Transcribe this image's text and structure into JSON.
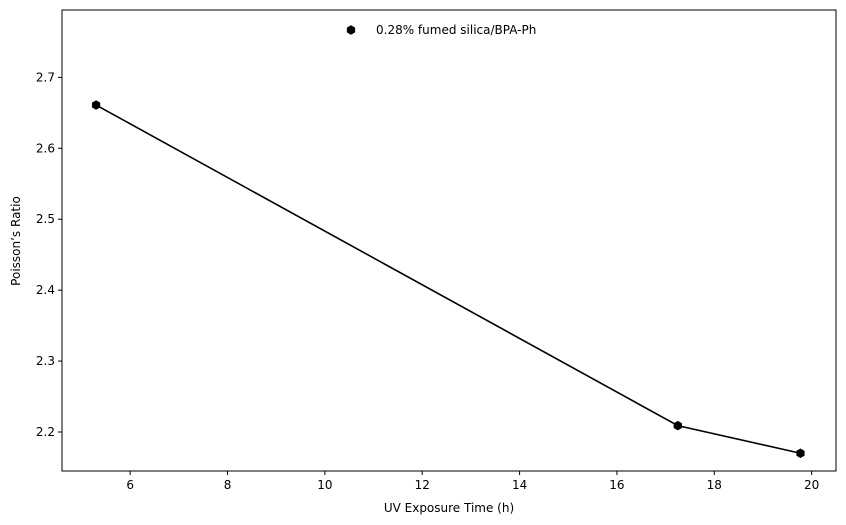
{
  "chart_data": {
    "type": "line",
    "title": "",
    "xlabel": "UV Exposure Time (h)",
    "ylabel": "Poisson’s Ratio",
    "xlim": [
      4.6,
      20.5
    ],
    "ylim": [
      2.145,
      2.795
    ],
    "xticks": [
      6,
      8,
      10,
      12,
      14,
      16,
      18,
      20
    ],
    "yticks": [
      2.2,
      2.3,
      2.4,
      2.5,
      2.6,
      2.7
    ],
    "grid": false,
    "legend": {
      "position": "top-center"
    },
    "series": [
      {
        "name": "0.28% fumed silica/BPA-Ph",
        "color": "#000000",
        "marker": "hexagon",
        "points": [
          {
            "x": 5.3,
            "y": 2.661
          },
          {
            "x": 17.25,
            "y": 2.209
          },
          {
            "x": 19.77,
            "y": 2.17
          }
        ]
      }
    ]
  }
}
